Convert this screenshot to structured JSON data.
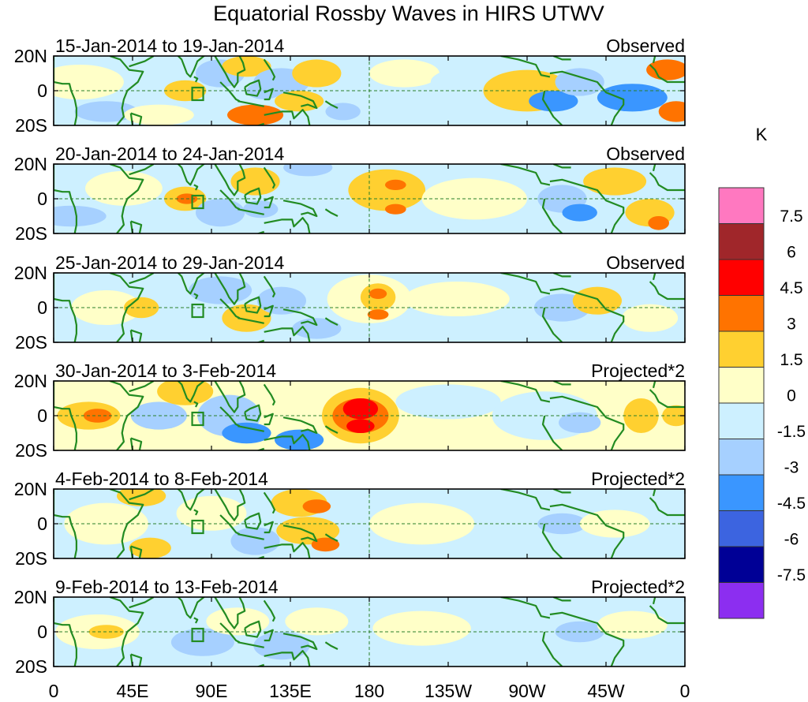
{
  "title": "Equatorial Rossby Waves in HIRS UTWV",
  "panels": [
    {
      "date_range": "15-Jan-2014 to 19-Jan-2014",
      "type_label": "Observed"
    },
    {
      "date_range": "20-Jan-2014 to 24-Jan-2014",
      "type_label": "Observed"
    },
    {
      "date_range": "25-Jan-2014 to 29-Jan-2014",
      "type_label": "Observed"
    },
    {
      "date_range": "30-Jan-2014 to 3-Feb-2014",
      "type_label": "Projected*2"
    },
    {
      "date_range": "4-Feb-2014 to 8-Feb-2014",
      "type_label": "Projected*2"
    },
    {
      "date_range": "9-Feb-2014 to 13-Feb-2014",
      "type_label": "Projected*2"
    }
  ],
  "lat_labels": [
    "20N",
    "0",
    "20S"
  ],
  "lon_labels": [
    "0",
    "45E",
    "90E",
    "135E",
    "180",
    "135W",
    "90W",
    "45W",
    "0"
  ],
  "colorbar": {
    "unit": "K",
    "tick_labels": [
      "7.5",
      "6",
      "4.5",
      "3",
      "1.5",
      "0",
      "-1.5",
      "-3",
      "-4.5",
      "-6",
      "-7.5"
    ],
    "colors_top_to_bottom": [
      "#ff78c0",
      "#a0262a",
      "#ff0000",
      "#ff7300",
      "#ffd030",
      "#ffffc8",
      "#cdf0ff",
      "#a6d0ff",
      "#3a96ff",
      "#3c64e0",
      "#000096",
      "#8c2ef0"
    ]
  },
  "colors": {
    "coast": "#228b22",
    "frame": "#000000",
    "dash": "#2a7f2a"
  }
}
